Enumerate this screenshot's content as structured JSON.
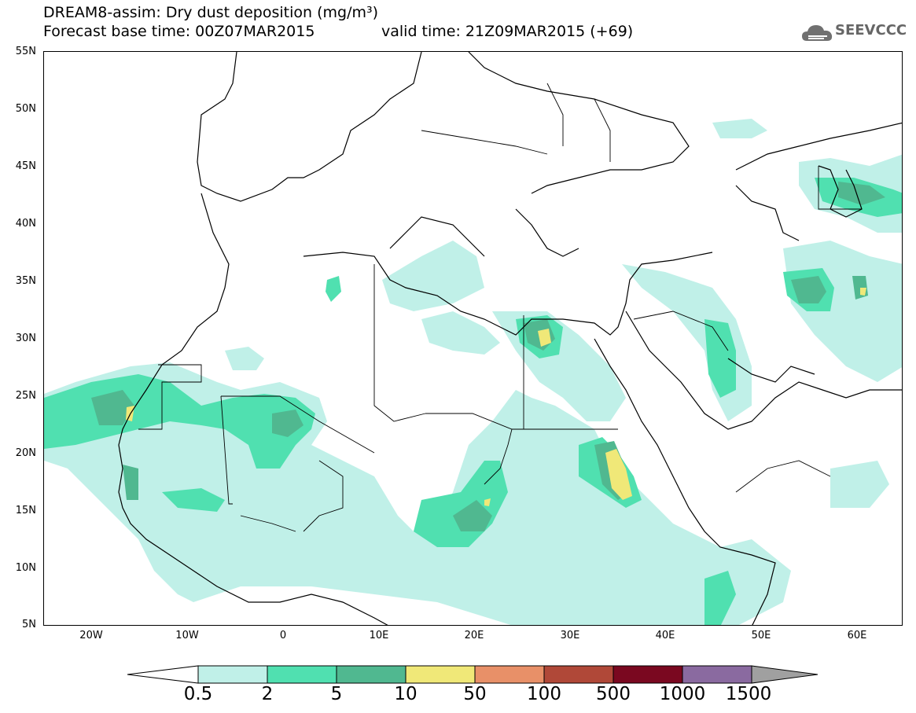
{
  "header": {
    "title": "DREAM8-assim: Dry dust deposition (mg/m³)",
    "base_time": "Forecast base time: 00Z07MAR2015",
    "valid_time": "valid time: 21Z09MAR2015 (+69)",
    "logo_text": "SEEVCCC"
  },
  "axes": {
    "lat_labels": [
      "55N",
      "50N",
      "45N",
      "40N",
      "35N",
      "30N",
      "25N",
      "20N",
      "15N",
      "10N",
      "5N"
    ],
    "lon_labels": [
      "20W",
      "10W",
      "0",
      "10E",
      "20E",
      "30E",
      "40E",
      "50E",
      "60E"
    ]
  },
  "legend": {
    "labels": [
      "0.5",
      "2",
      "5",
      "10",
      "50",
      "100",
      "500",
      "1000",
      "1500"
    ],
    "colors": [
      "#c0f0e8",
      "#50e0b0",
      "#50b890",
      "#f0e878",
      "#e89068",
      "#b04838",
      "#7a0820",
      "#8a6aa0",
      "#a0a0a0"
    ]
  },
  "colors": {
    "level1": "#c0f0e8",
    "level2": "#50e0b0",
    "level3": "#50b890",
    "level4": "#f0e878"
  }
}
